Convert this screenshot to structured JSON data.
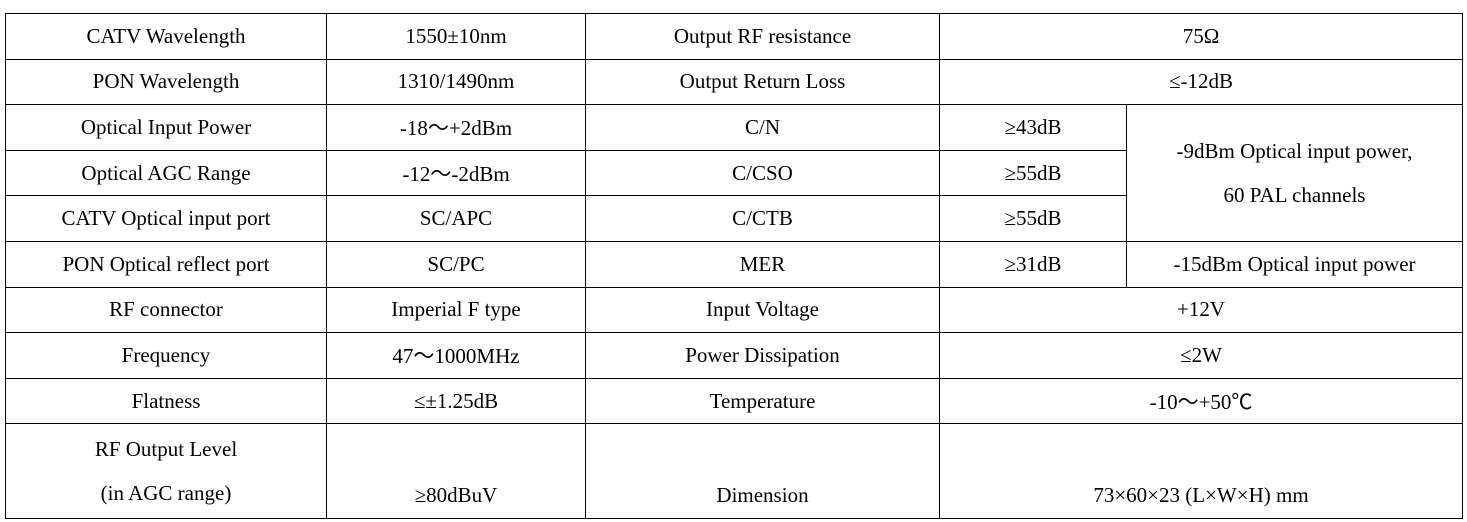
{
  "rows": [
    {
      "p1": "CATV Wavelength",
      "v1": "1550±10nm",
      "p2": "Output RF resistance",
      "v2": "75Ω"
    },
    {
      "p1": "PON Wavelength",
      "v1": "1310/1490nm",
      "p2": "Output Return Loss",
      "v2": "≤-12dB"
    },
    {
      "p1": "Optical Input Power",
      "v1": "-18～+2dBm",
      "p2": "C/N",
      "v2": "≥43dB"
    },
    {
      "p1": "Optical AGC Range",
      "v1": "-12～-2dBm",
      "p2": "C/CSO",
      "v2": "≥55dB"
    },
    {
      "p1": "CATV Optical input port",
      "v1": "SC/APC",
      "p2": "C/CTB",
      "v2": "≥55dB"
    },
    {
      "p1": "PON Optical reflect port",
      "v1": "SC/PC",
      "p2": "MER",
      "v2": "≥31dB"
    },
    {
      "p1": "RF connector",
      "v1": "Imperial F type",
      "p2": "Input Voltage",
      "v2": "+12V"
    },
    {
      "p1": "Frequency",
      "v1": "47～1000MHz",
      "p2": "Power Dissipation",
      "v2": "≤2W"
    },
    {
      "p1": "Flatness",
      "v1": "≤±1.25dB",
      "p2": "Temperature",
      "v2": "-10～+50℃"
    },
    {
      "p1_line1": "RF Output Level",
      "p1_line2": "(in AGC range)",
      "v1": "≥80dBuV",
      "p2": "Dimension",
      "v2": "73×60×23 (L×W×H) mm"
    }
  ],
  "notes": {
    "condition_a_line1": "-9dBm Optical input power,",
    "condition_a_line2": "60 PAL channels",
    "condition_b": "-15dBm Optical input power"
  }
}
